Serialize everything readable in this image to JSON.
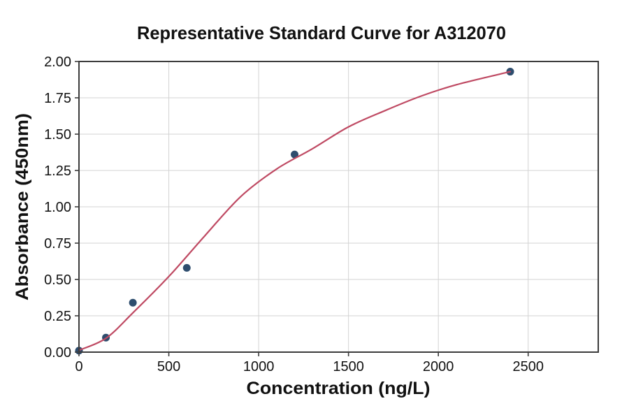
{
  "chart_data": {
    "type": "scatter",
    "title": "Representative Standard Curve for A312070",
    "xlabel": "Concentration (ng/L)",
    "ylabel": "Absorbance (450nm)",
    "xlim": [
      0,
      2890
    ],
    "ylim": [
      0,
      2.0
    ],
    "grid": true,
    "legend": false,
    "x_ticks": {
      "values": [
        0,
        500,
        1000,
        1500,
        2000,
        2500
      ],
      "labels": [
        "0",
        "500",
        "1000",
        "1500",
        "2000",
        "2500"
      ]
    },
    "y_ticks": {
      "values": [
        0,
        0.25,
        0.5,
        0.75,
        1.0,
        1.25,
        1.5,
        1.75,
        2.0
      ],
      "labels": [
        "0.00",
        "0.25",
        "0.50",
        "0.75",
        "1.00",
        "1.25",
        "1.50",
        "1.75",
        "2.00"
      ]
    },
    "series": [
      {
        "name": "standard-points",
        "type": "scatter",
        "points": [
          [
            0,
            0.01
          ],
          [
            150,
            0.1
          ],
          [
            300,
            0.34
          ],
          [
            600,
            0.58
          ],
          [
            1200,
            1.36
          ],
          [
            2400,
            1.93
          ]
        ]
      },
      {
        "name": "fit-curve",
        "type": "line",
        "fit": "4PL sigmoid",
        "points": [
          [
            0,
            0.013
          ],
          [
            150,
            0.095
          ],
          [
            300,
            0.27
          ],
          [
            500,
            0.52
          ],
          [
            700,
            0.8
          ],
          [
            900,
            1.07
          ],
          [
            1100,
            1.26
          ],
          [
            1300,
            1.4
          ],
          [
            1500,
            1.55
          ],
          [
            1700,
            1.66
          ],
          [
            1900,
            1.76
          ],
          [
            2100,
            1.84
          ],
          [
            2400,
            1.93
          ]
        ]
      }
    ],
    "colors": {
      "point": "#2e4d6e",
      "curve": "#bf4a63",
      "grid": "#d3d3d3",
      "axis": "#3c3c3c",
      "text": "#111111",
      "background": "#ffffff"
    }
  }
}
